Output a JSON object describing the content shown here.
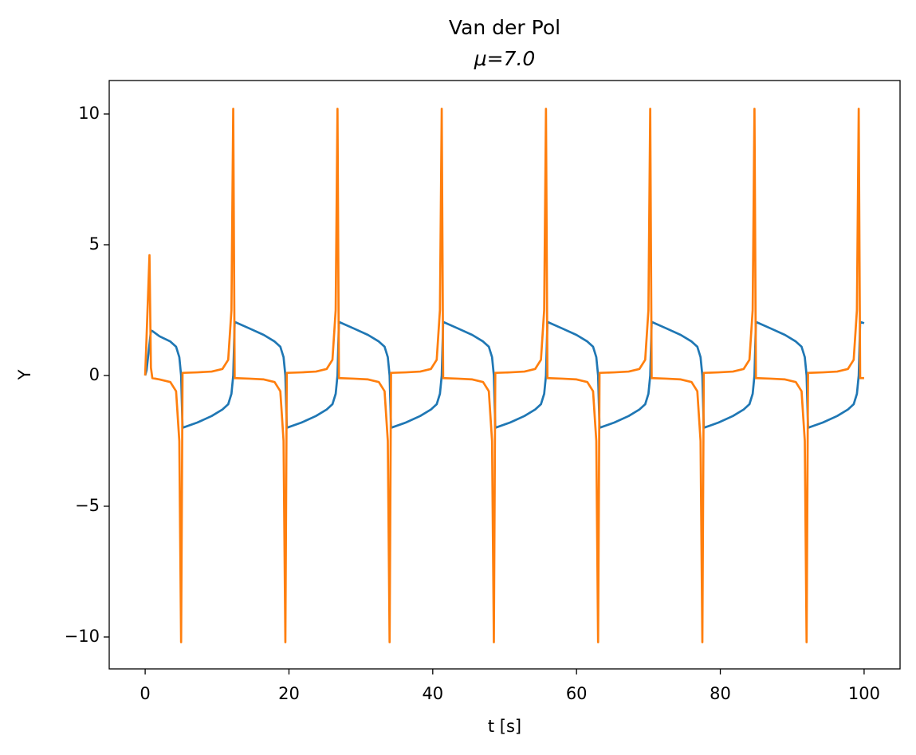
{
  "chart_data": {
    "type": "line",
    "title": "Van der Pol",
    "subtitle": "μ=7.0",
    "x_label": "t [s]",
    "y_label": "Y",
    "xlim": [
      -5,
      105
    ],
    "ylim": [
      -11.22,
      11.28
    ],
    "xticks": [
      0,
      20,
      40,
      60,
      80,
      100
    ],
    "yticks": [
      {
        "value": -10,
        "label": "−10"
      },
      {
        "value": -5,
        "label": "−5"
      },
      0,
      5,
      10
    ],
    "grid": false,
    "x": [
      0,
      0.2,
      0.6,
      0.8,
      1.0,
      2.0,
      3.5,
      4.3,
      4.75,
      5.0,
      5.2,
      7.25,
      9.25,
      10.75,
      11.55,
      12.0,
      12.25,
      12.45,
      14.5,
      16.5,
      18.0,
      18.8,
      19.25,
      19.5,
      19.7,
      21.75,
      23.75,
      25.25,
      26.05,
      26.5,
      26.75,
      26.95,
      29,
      31,
      32.5,
      33.3,
      33.75,
      34,
      34.2,
      36.25,
      38.25,
      39.75,
      40.55,
      41,
      41.25,
      41.45,
      43.5,
      45.5,
      47,
      47.8,
      48.25,
      48.5,
      48.7,
      50.75,
      52.75,
      54.25,
      55.05,
      55.5,
      55.75,
      55.95,
      58,
      60,
      61.5,
      62.3,
      62.75,
      63,
      63.2,
      65.25,
      67.25,
      68.75,
      69.55,
      70,
      70.25,
      70.45,
      72.5,
      74.5,
      76,
      76.8,
      77.25,
      77.5,
      77.7,
      79.75,
      81.75,
      83.25,
      84.05,
      84.5,
      84.75,
      84.95,
      87,
      89,
      90.5,
      91.3,
      91.75,
      92,
      92.2,
      94.25,
      96.25,
      97.75,
      98.55,
      99,
      99.25,
      99.45,
      100
    ],
    "series": [
      {
        "color": "#1f77b4",
        "values": [
          0,
          0.2,
          1.2,
          1.72,
          1.7,
          1.5,
          1.3,
          1.1,
          0.7,
          0,
          -2.0,
          -1.8,
          -1.55,
          -1.3,
          -1.1,
          -0.7,
          0,
          2.05,
          1.8,
          1.55,
          1.3,
          1.1,
          0.7,
          0,
          -2.0,
          -1.8,
          -1.55,
          -1.3,
          -1.1,
          -0.7,
          0,
          2.05,
          1.8,
          1.55,
          1.3,
          1.1,
          0.7,
          0,
          -2.0,
          -1.8,
          -1.55,
          -1.3,
          -1.1,
          -0.7,
          0,
          2.05,
          1.8,
          1.55,
          1.3,
          1.1,
          0.7,
          0,
          -2.0,
          -1.8,
          -1.55,
          -1.3,
          -1.1,
          -0.7,
          0,
          2.05,
          1.8,
          1.55,
          1.3,
          1.1,
          0.7,
          0,
          -2.0,
          -1.8,
          -1.55,
          -1.3,
          -1.1,
          -0.7,
          0,
          2.05,
          1.8,
          1.55,
          1.3,
          1.1,
          0.7,
          0,
          -2.0,
          -1.8,
          -1.55,
          -1.3,
          -1.1,
          -0.7,
          0,
          2.05,
          1.8,
          1.55,
          1.3,
          1.1,
          0.7,
          0,
          -2.0,
          -1.8,
          -1.55,
          -1.3,
          -1.1,
          -0.7,
          0,
          2.05,
          2.0
        ]
      },
      {
        "color": "#ff7f0e",
        "values": [
          0,
          1.5,
          4.6,
          0.3,
          -0.1,
          -0.15,
          -0.25,
          -0.6,
          -2.5,
          -10.2,
          0.1,
          0.12,
          0.15,
          0.25,
          0.6,
          2.5,
          10.2,
          -0.1,
          -0.12,
          -0.15,
          -0.25,
          -0.6,
          -2.5,
          -10.2,
          0.1,
          0.12,
          0.15,
          0.25,
          0.6,
          2.5,
          10.2,
          -0.1,
          -0.12,
          -0.15,
          -0.25,
          -0.6,
          -2.5,
          -10.2,
          0.1,
          0.12,
          0.15,
          0.25,
          0.6,
          2.5,
          10.2,
          -0.1,
          -0.12,
          -0.15,
          -0.25,
          -0.6,
          -2.5,
          -10.2,
          0.1,
          0.12,
          0.15,
          0.25,
          0.6,
          2.5,
          10.2,
          -0.1,
          -0.12,
          -0.15,
          -0.25,
          -0.6,
          -2.5,
          -10.2,
          0.1,
          0.12,
          0.15,
          0.25,
          0.6,
          2.5,
          10.2,
          -0.1,
          -0.12,
          -0.15,
          -0.25,
          -0.6,
          -2.5,
          -10.2,
          0.1,
          0.12,
          0.15,
          0.25,
          0.6,
          2.5,
          10.2,
          -0.1,
          -0.12,
          -0.15,
          -0.25,
          -0.6,
          -2.5,
          -10.2,
          0.1,
          0.12,
          0.15,
          0.25,
          0.6,
          2.5,
          10.2,
          -0.1,
          -0.1
        ]
      }
    ]
  }
}
